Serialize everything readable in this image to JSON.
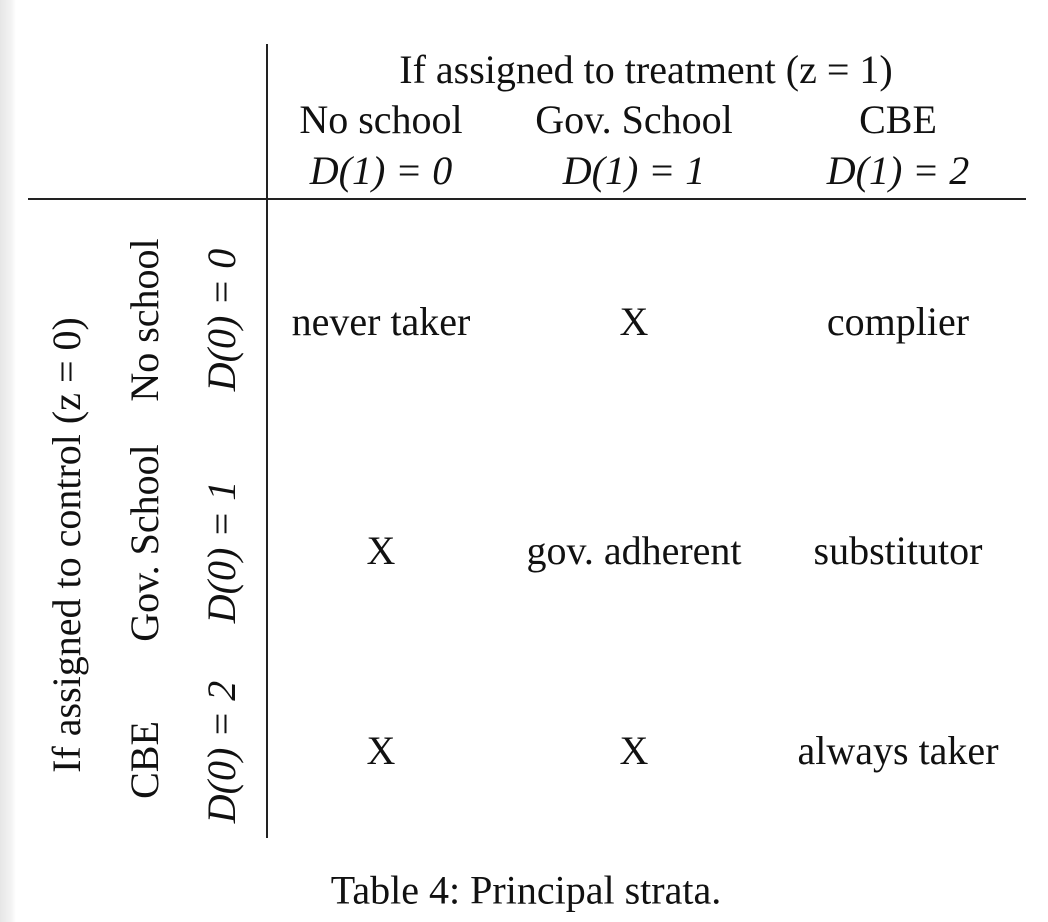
{
  "table": {
    "header": {
      "group_label": "If assigned to treatment (z = 1)",
      "columns": [
        {
          "name": "No school",
          "math": "D(1) = 0"
        },
        {
          "name": "Gov. School",
          "math": "D(1) = 1"
        },
        {
          "name": "CBE",
          "math": "D(1) = 2"
        }
      ]
    },
    "row_header": {
      "group_label": "If assigned to control (z = 0)",
      "rows": [
        {
          "name": "No school",
          "math": "D(0) = 0"
        },
        {
          "name": "Gov. School",
          "math": "D(0) = 1"
        },
        {
          "name": "CBE",
          "math": "D(0) = 2"
        }
      ]
    },
    "cells": [
      [
        "never taker",
        "X",
        "complier"
      ],
      [
        "X",
        "gov. adherent",
        "substitutor"
      ],
      [
        "X",
        "X",
        "always taker"
      ]
    ]
  },
  "caption": "Table 4: Principal strata."
}
